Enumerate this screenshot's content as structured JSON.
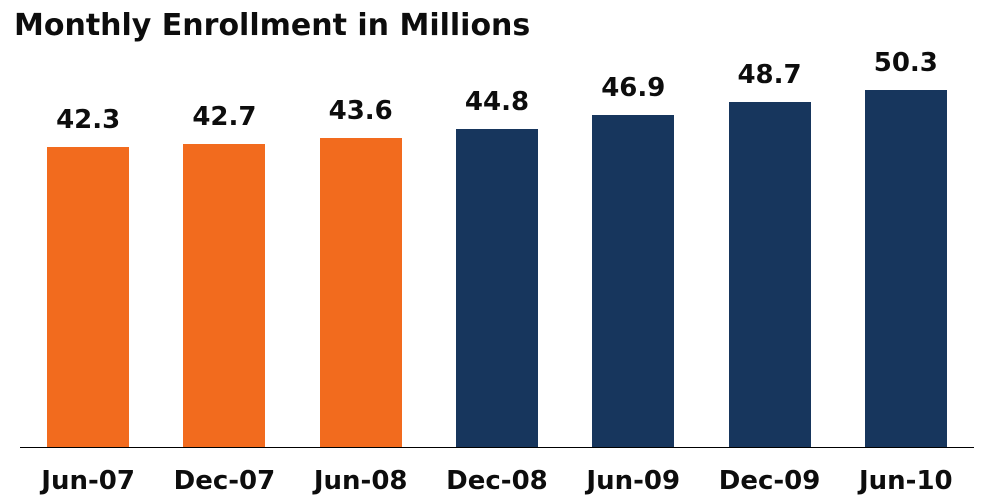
{
  "title": "Monthly Enrollment in Millions",
  "colors": {
    "background": "#ffffff",
    "orange_bar": "#F26B1E",
    "navy_bar": "#17365D",
    "axis_line": "#000000",
    "text": "#0d0d0d"
  },
  "chart_data": {
    "type": "bar",
    "title": "Monthly Enrollment in Millions",
    "categories": [
      "Jun-07",
      "Dec-07",
      "Jun-08",
      "Dec-08",
      "Jun-09",
      "Dec-09",
      "Jun-10"
    ],
    "values": [
      42.3,
      42.7,
      43.6,
      44.8,
      46.9,
      48.7,
      50.3
    ],
    "data_labels": [
      "42.3",
      "42.7",
      "43.6",
      "44.8",
      "46.9",
      "48.7",
      "50.3"
    ],
    "bar_colors": [
      "#F26B1E",
      "#F26B1E",
      "#F26B1E",
      "#17365D",
      "#17365D",
      "#17365D",
      "#17365D"
    ],
    "xlabel": "",
    "ylabel": "",
    "ylim": [
      0,
      56
    ],
    "grid": false,
    "legend_position": "none",
    "data_label_position": "above-bar",
    "baseline": 0
  }
}
